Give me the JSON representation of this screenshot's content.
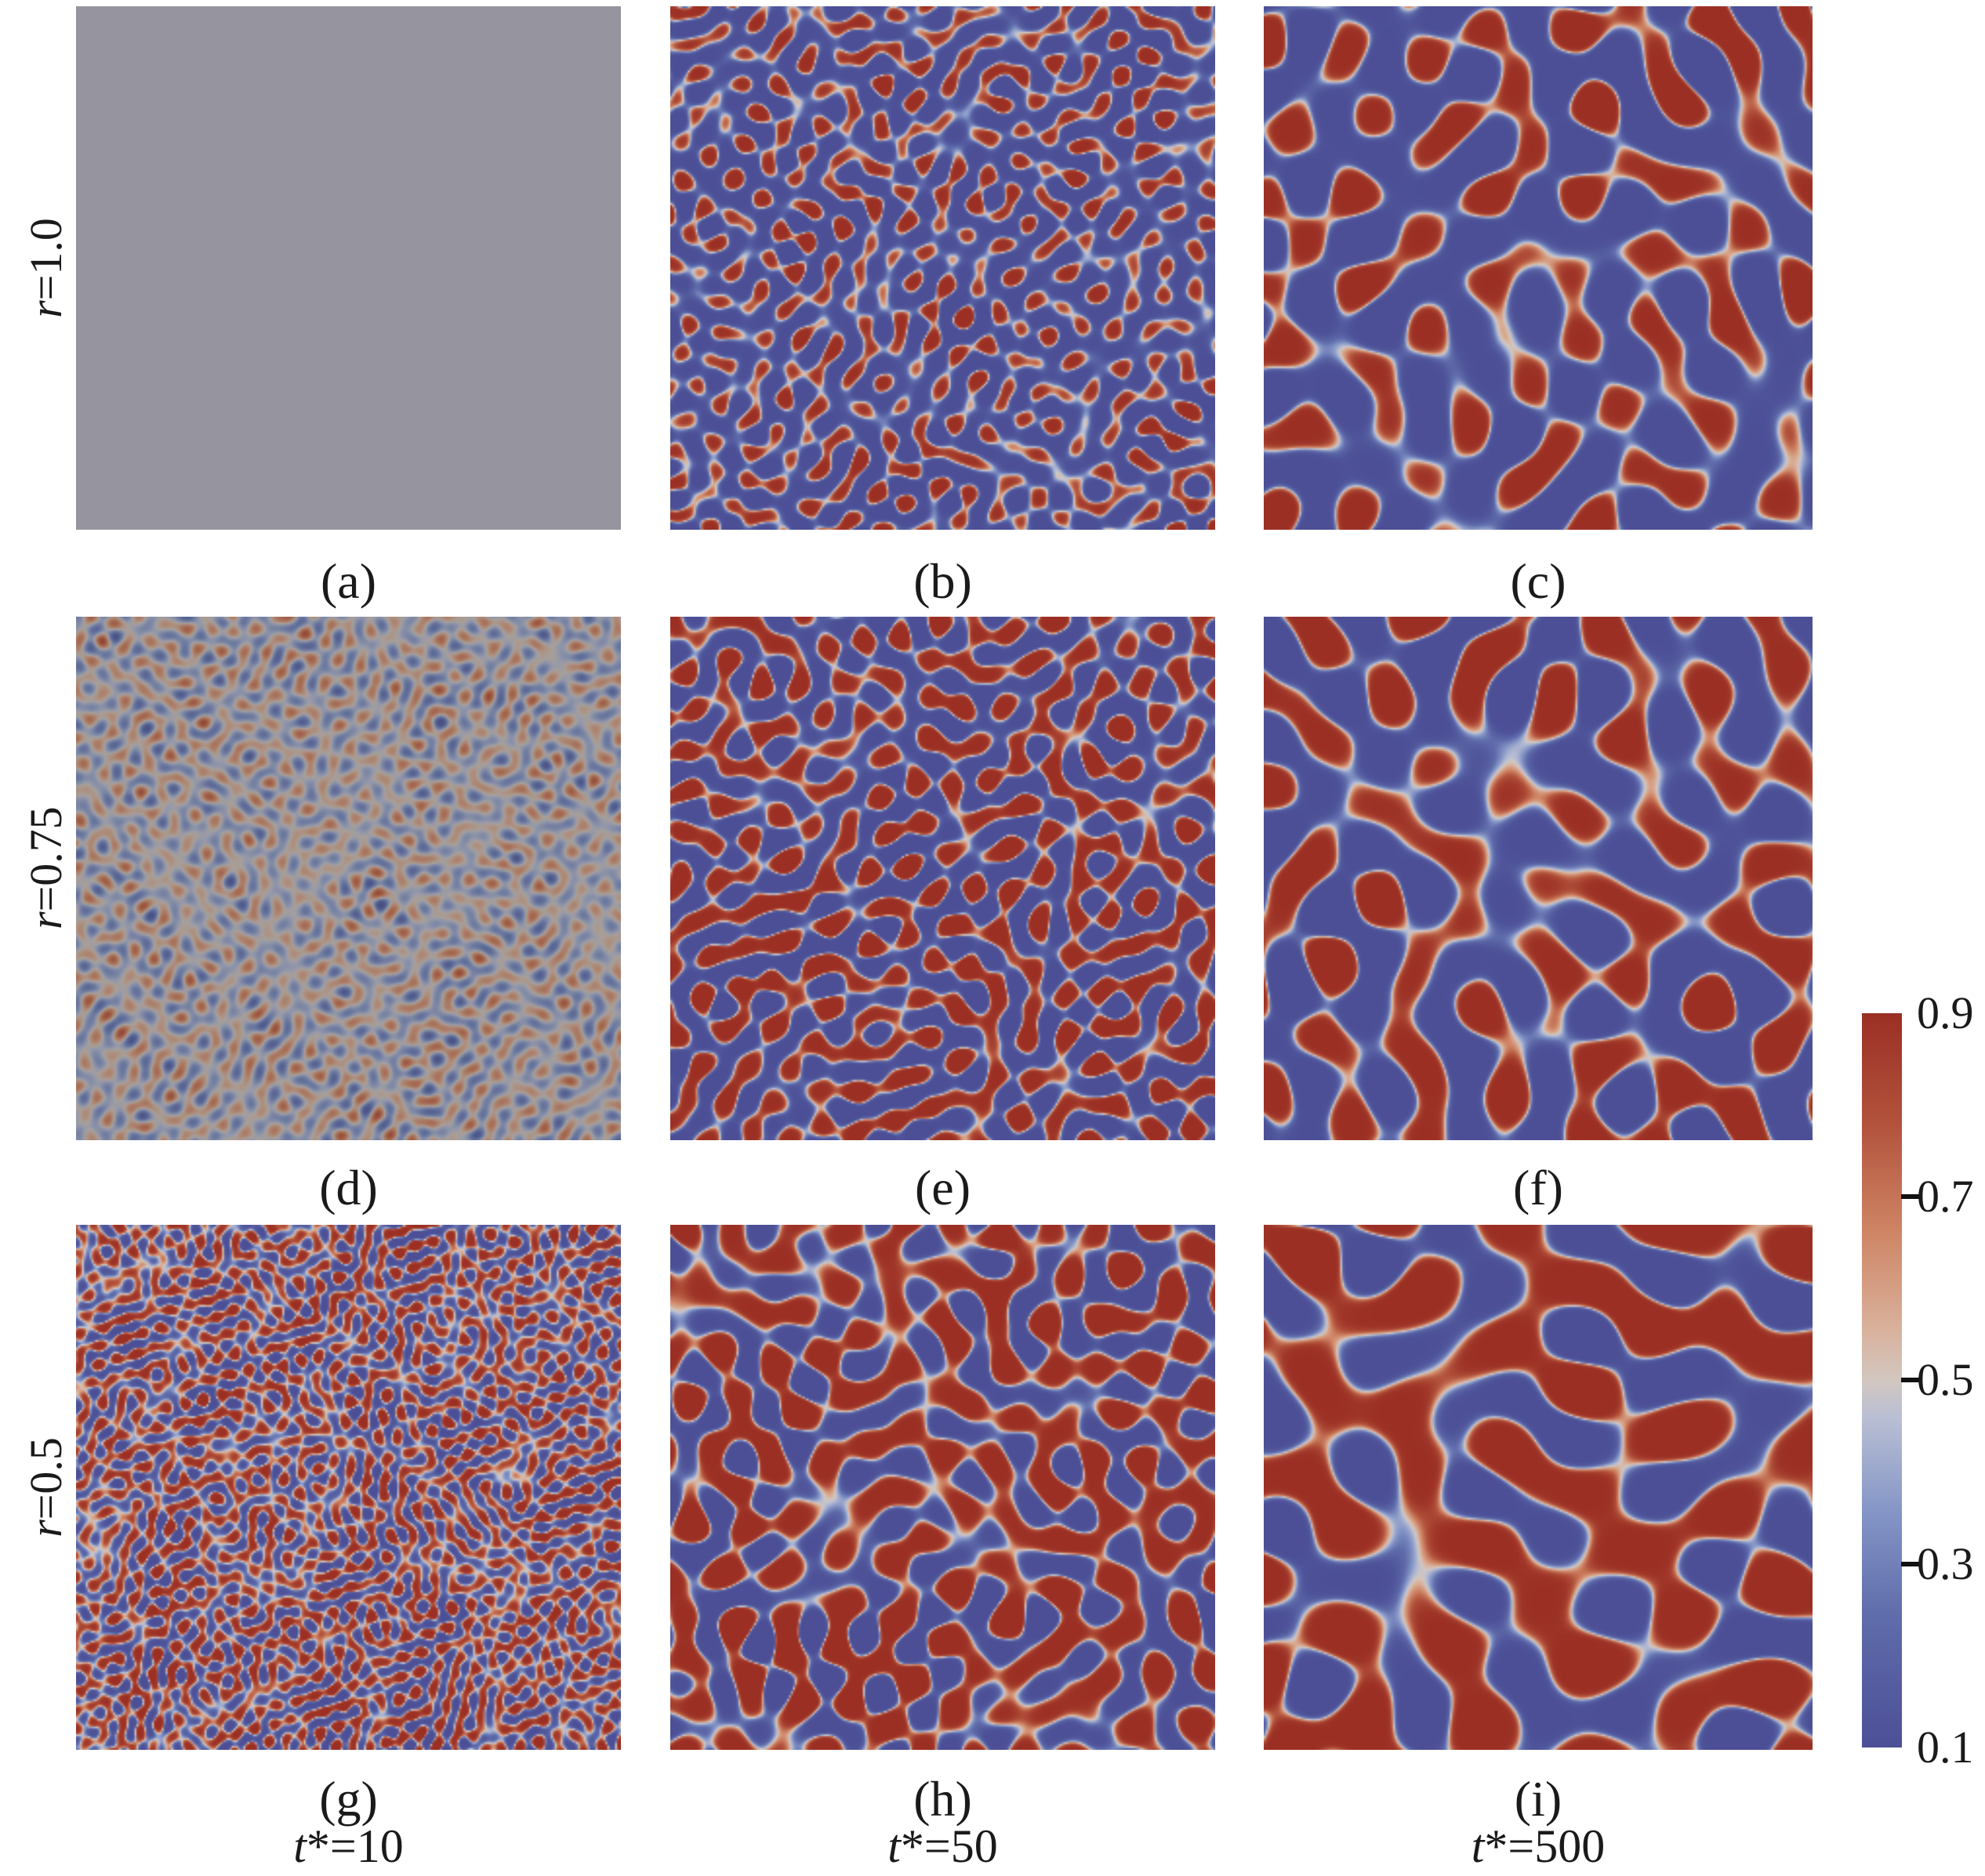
{
  "figure": {
    "type": "phase-field-simulation-grid",
    "grid": "3x3 microstructure snapshots",
    "text_color": "#1a1a1a",
    "background_color": "#ffffff"
  },
  "rows": [
    {
      "var": "r",
      "value": "=1.0"
    },
    {
      "var": "r",
      "value": "=0.75"
    },
    {
      "var": "r",
      "value": "=0.5"
    }
  ],
  "cols": [
    {
      "var": "t",
      "rest": "*=10"
    },
    {
      "var": "t",
      "rest": "*=50"
    },
    {
      "var": "t",
      "rest": "*=500"
    }
  ],
  "panels": [
    {
      "id": "a",
      "label": "(a)",
      "row": "r=1.0",
      "col": "t*=10",
      "description": "uniform mid-concentration gray field",
      "pattern": {
        "type": "uniform",
        "solid": "#96959f",
        "seed": 1
      }
    },
    {
      "id": "b",
      "label": "(b)",
      "row": "r=1.0",
      "col": "t*=50",
      "description": "fine red droplets and short worms on slate-blue matrix",
      "pattern": {
        "type": "spinodal",
        "seed": 7,
        "wavelength": 40,
        "bias": -0.55,
        "gain": 2.0,
        "amplitude": 1,
        "dim": 1
      }
    },
    {
      "id": "c",
      "label": "(c)",
      "row": "r=1.0",
      "col": "t*=500",
      "description": "coarsened red islands on blue matrix",
      "pattern": {
        "type": "spinodal",
        "seed": 11,
        "wavelength": 92,
        "bias": -0.4,
        "gain": 3.2,
        "amplitude": 1,
        "dim": 1
      }
    },
    {
      "id": "d",
      "label": "(d)",
      "row": "r=0.75",
      "col": "t*=10",
      "description": "faint early-stage concentration fluctuations on gray",
      "pattern": {
        "type": "spinodal",
        "seed": 19,
        "wavelength": 27,
        "bias": -0.06,
        "gain": 0.9,
        "amplitude": 0.25,
        "dim": 0.8
      }
    },
    {
      "id": "e",
      "label": "(e)",
      "row": "r=0.75",
      "col": "t*=50",
      "description": "dense red worm domains on dark blue matrix",
      "pattern": {
        "type": "spinodal",
        "seed": 23,
        "wavelength": 48,
        "bias": -0.16,
        "gain": 2.8,
        "amplitude": 1,
        "dim": 1
      }
    },
    {
      "id": "f",
      "label": "(f)",
      "row": "r=0.75",
      "col": "t*=500",
      "description": "large rounded red domains on dark blue matrix",
      "pattern": {
        "type": "spinodal",
        "seed": 31,
        "wavelength": 100,
        "bias": -0.26,
        "gain": 3.4,
        "amplitude": 1,
        "dim": 1
      }
    },
    {
      "id": "g",
      "label": "(g)",
      "row": "r=0.5",
      "col": "t*=10",
      "description": "fine bicontinuous red/blue labyrinth",
      "pattern": {
        "type": "spinodal",
        "seed": 41,
        "wavelength": 23,
        "bias": -0.02,
        "gain": 1.5,
        "amplitude": 1,
        "dim": 1
      }
    },
    {
      "id": "h",
      "label": "(h)",
      "row": "r=0.5",
      "col": "t*=50",
      "description": "thick interconnected red labyrinth on blue",
      "pattern": {
        "type": "spinodal",
        "seed": 53,
        "wavelength": 62,
        "bias": 0.05,
        "gain": 3.2,
        "amplitude": 1,
        "dim": 1
      }
    },
    {
      "id": "i",
      "label": "(i)",
      "row": "r=0.5",
      "col": "t*=500",
      "description": "coarse elongated red domains on dark blue",
      "pattern": {
        "type": "spinodal",
        "seed": 67,
        "wavelength": 120,
        "bias": 0.05,
        "gain": 3.6,
        "amplitude": 1,
        "dim": 1
      }
    }
  ],
  "colormap": {
    "name": "muted-coolwarm",
    "stops": [
      {
        "t": 0.0,
        "color": "#4c4f96"
      },
      {
        "t": 0.18,
        "color": "#5f6cab"
      },
      {
        "t": 0.32,
        "color": "#8495c6"
      },
      {
        "t": 0.45,
        "color": "#b9bfd4"
      },
      {
        "t": 0.5,
        "color": "#d2c7c0"
      },
      {
        "t": 0.57,
        "color": "#d9b19b"
      },
      {
        "t": 0.7,
        "color": "#cf8566"
      },
      {
        "t": 0.85,
        "color": "#b2523c"
      },
      {
        "t": 1.0,
        "color": "#9b2f24"
      }
    ]
  },
  "colorbar": {
    "ticks": [
      "0.9",
      "0.7",
      "0.5",
      "0.3",
      "0.1"
    ],
    "max": "0.9",
    "min": "0.1",
    "tick_color": "#111111"
  }
}
